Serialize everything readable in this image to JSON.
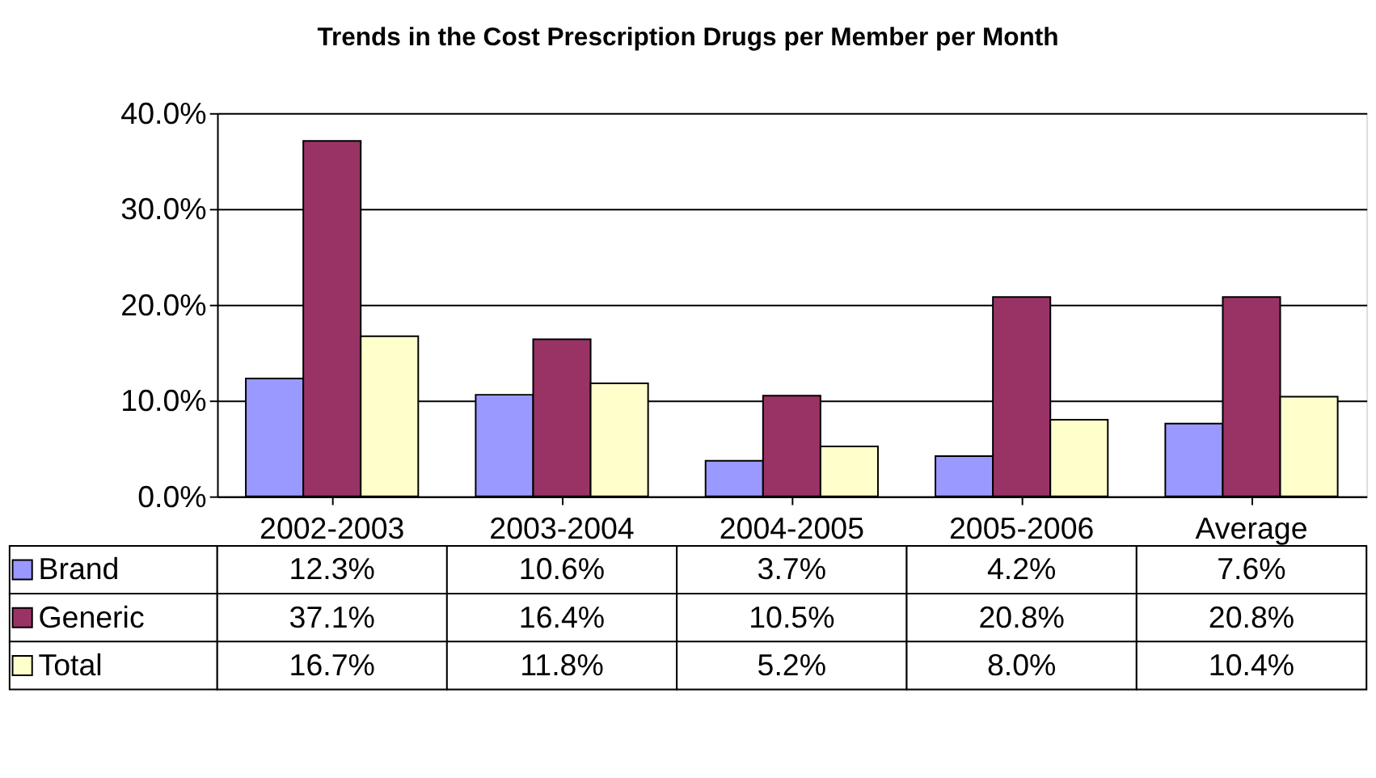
{
  "chart_data": {
    "type": "bar",
    "title": "Trends in the Cost Prescription Drugs per Member per Month",
    "categories": [
      "2002-2003",
      "2003-2004",
      "2004-2005",
      "2005-2006",
      "Average"
    ],
    "series": [
      {
        "name": "Brand",
        "color": "#9999ff",
        "values": [
          12.3,
          10.6,
          3.7,
          4.2,
          7.6
        ],
        "value_labels": [
          "12.3%",
          "10.6%",
          "3.7%",
          "4.2%",
          "7.6%"
        ]
      },
      {
        "name": "Generic",
        "color": "#993366",
        "values": [
          37.1,
          16.4,
          10.5,
          20.8,
          20.8
        ],
        "value_labels": [
          "37.1%",
          "16.4%",
          "10.5%",
          "20.8%",
          "20.8%"
        ]
      },
      {
        "name": "Total",
        "color": "#ffffcc",
        "values": [
          16.7,
          11.8,
          5.2,
          8.0,
          10.4
        ],
        "value_labels": [
          "16.7%",
          "11.8%",
          "5.2%",
          "8.0%",
          "10.4%"
        ]
      }
    ],
    "ylim": [
      0,
      40
    ],
    "yticks": [
      {
        "value": 0,
        "label": "0.0%"
      },
      {
        "value": 10,
        "label": "10.0%"
      },
      {
        "value": 20,
        "label": "20.0%"
      },
      {
        "value": 30,
        "label": "30.0%"
      },
      {
        "value": 40,
        "label": "40.0%"
      }
    ],
    "grid": "y",
    "legend": "bottom left"
  }
}
